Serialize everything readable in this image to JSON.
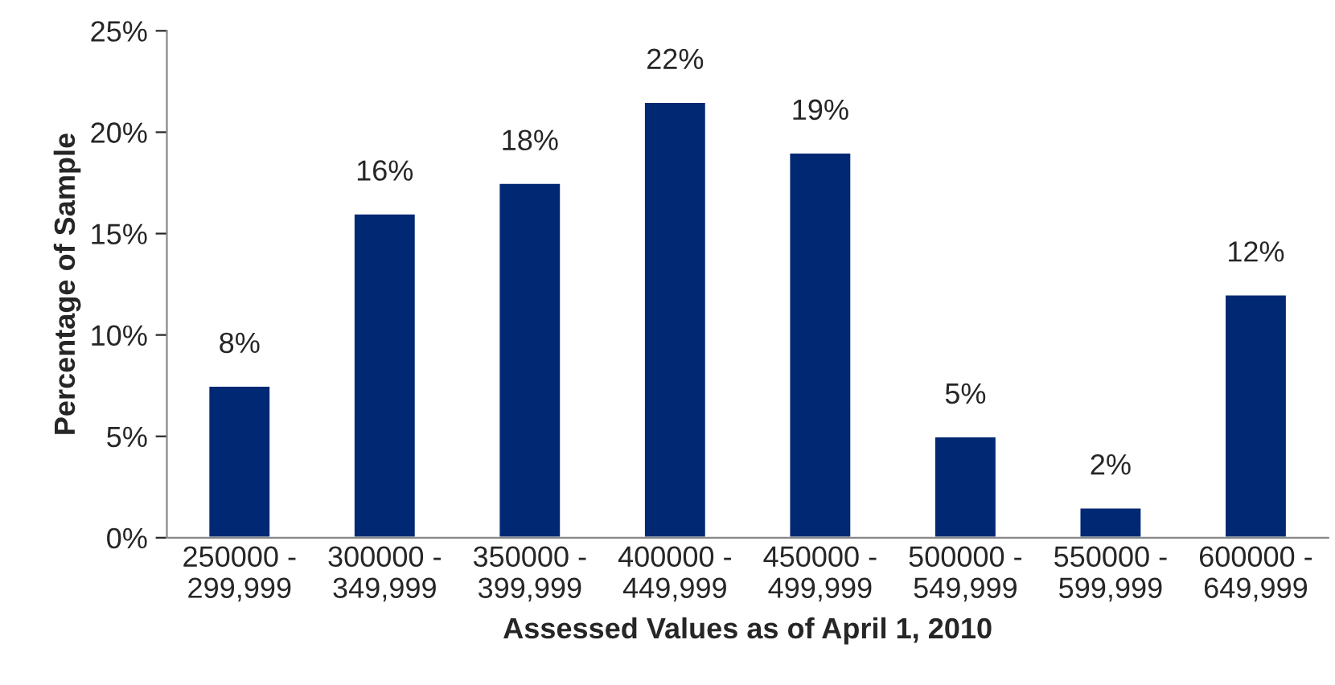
{
  "chart_data": {
    "type": "bar",
    "xlabel": "Assessed Values as of April 1, 2010",
    "ylabel": "Percentage of Sample",
    "categories": [
      "250000 -\n299,999",
      "300000 -\n349,999",
      "350000 -\n399,999",
      "400000 -\n449,999",
      "450000 -\n499,999",
      "500000 -\n549,999",
      "550000 -\n599,999",
      "600000 -\n649,999"
    ],
    "values": [
      7.5,
      16,
      17.5,
      21.5,
      19,
      5,
      1.5,
      12
    ],
    "value_labels": [
      "8%",
      "16%",
      "18%",
      "22%",
      "19%",
      "5%",
      "2%",
      "12%"
    ],
    "color": "#002873",
    "ylim": [
      0,
      25
    ],
    "yticks": [
      {
        "value": 0,
        "label": "0%"
      },
      {
        "value": 5,
        "label": "5%"
      },
      {
        "value": 10,
        "label": "10%"
      },
      {
        "value": 15,
        "label": "15%"
      },
      {
        "value": 20,
        "label": "20%"
      },
      {
        "value": 25,
        "label": "25%"
      }
    ],
    "grid": false,
    "legend": false
  }
}
